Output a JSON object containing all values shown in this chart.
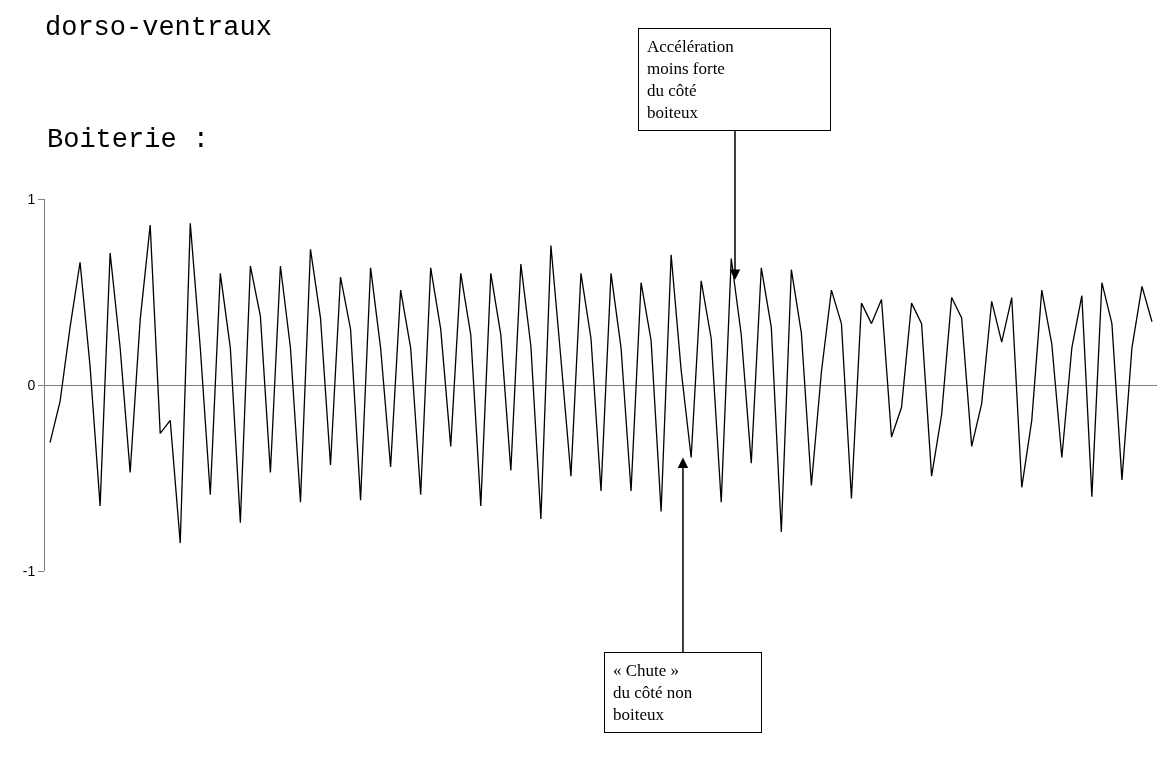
{
  "chart_data": {
    "type": "line",
    "title": "dorso-ventraux",
    "subtitle": "Boiterie :",
    "categories": [
      null,
      null,
      null,
      null,
      null,
      null,
      null,
      null,
      null,
      null,
      null,
      null,
      null,
      null,
      null,
      null,
      null,
      null,
      null,
      null,
      null,
      null,
      null,
      null,
      null,
      null,
      null,
      null,
      null,
      null,
      null,
      null,
      null,
      null,
      null,
      null,
      null,
      null,
      null,
      null,
      null,
      null,
      null,
      null,
      null,
      null,
      null,
      null,
      null,
      null,
      null,
      null,
      null,
      null,
      null,
      null,
      null,
      null,
      null,
      null,
      null,
      null,
      null,
      null,
      null,
      null,
      null,
      null,
      null,
      null,
      null,
      null,
      null,
      null,
      null,
      null,
      null,
      null,
      null,
      null,
      null,
      null,
      null,
      null,
      null,
      null,
      null,
      null,
      null,
      null,
      null,
      null,
      null,
      null,
      null,
      null,
      null,
      null,
      null,
      null,
      null,
      null,
      null,
      null,
      null,
      null,
      null,
      null,
      null,
      null,
      null
    ],
    "values": [
      -0.31,
      -0.09,
      0.31,
      0.66,
      0.1,
      -0.65,
      0.71,
      0.2,
      -0.47,
      0.35,
      0.86,
      -0.26,
      -0.19,
      -0.85,
      0.87,
      0.2,
      -0.59,
      0.6,
      0.2,
      -0.74,
      0.64,
      0.37,
      -0.47,
      0.64,
      0.2,
      -0.63,
      0.73,
      0.36,
      -0.43,
      0.58,
      0.3,
      -0.62,
      0.63,
      0.2,
      -0.44,
      0.51,
      0.2,
      -0.59,
      0.63,
      0.3,
      -0.33,
      0.6,
      0.27,
      -0.65,
      0.6,
      0.27,
      -0.46,
      0.65,
      0.21,
      -0.72,
      0.75,
      0.14,
      -0.49,
      0.6,
      0.25,
      -0.57,
      0.6,
      0.2,
      -0.57,
      0.55,
      0.24,
      -0.68,
      0.7,
      0.08,
      -0.39,
      0.56,
      0.25,
      -0.63,
      0.68,
      0.27,
      -0.42,
      0.63,
      0.31,
      -0.79,
      0.62,
      0.28,
      -0.54,
      0.07,
      0.51,
      0.33,
      -0.61,
      0.44,
      0.33,
      0.46,
      -0.28,
      -0.12,
      0.44,
      0.33,
      -0.49,
      -0.16,
      0.47,
      0.36,
      -0.33,
      -0.1,
      0.45,
      0.23,
      0.47,
      -0.55,
      -0.19,
      0.51,
      0.22,
      -0.39,
      0.2,
      0.48,
      -0.6,
      0.55,
      0.33,
      -0.51,
      0.2,
      0.53,
      0.34
    ],
    "color": "#000000",
    "ylim": [
      -1,
      1
    ],
    "yticks": [
      -1,
      0,
      1
    ],
    "tick_labels": "y",
    "marker": "none",
    "line_style": "solid",
    "annotations": [
      "Accélération\nmoins forte\ndu côté\nboiteux",
      "« Chute »\ndu côté non\nboiteux"
    ]
  }
}
